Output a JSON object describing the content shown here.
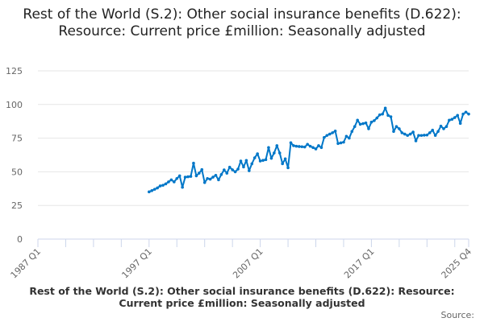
{
  "chart_data": {
    "type": "line",
    "title": "Rest of the World (S.2): Other social insurance benefits (D.622): Resource: Current price £million: Seasonally adjusted",
    "xlabel": "",
    "ylabel": "",
    "ylim": [
      0,
      125
    ],
    "yticks": [
      "0",
      "25",
      "50",
      "75",
      "100",
      "125"
    ],
    "xticks": [
      "1987 Q1",
      "1997 Q1",
      "2007 Q1",
      "2017 Q1",
      "2025 Q4"
    ],
    "x_range": [
      "1987 Q1",
      "2025 Q4"
    ],
    "x_start": "1997 Q1",
    "x_frequency": "quarterly",
    "grid": true,
    "legend": "none",
    "line_color": "#0077c8",
    "values": [
      35.1,
      36,
      37,
      38,
      39.5,
      40,
      41,
      42.5,
      44,
      42.5,
      45,
      47,
      38.5,
      46,
      46.3,
      46.6,
      56.4,
      47,
      49,
      51.6,
      42,
      45,
      44.5,
      46,
      47.4,
      44,
      48,
      51.4,
      49,
      53.4,
      51.5,
      50,
      52,
      58,
      53.6,
      58.4,
      50.8,
      56,
      60.4,
      63.4,
      58,
      58.5,
      59,
      68,
      60,
      64,
      69.4,
      64,
      56,
      59.6,
      53,
      71.6,
      69.4,
      69,
      68.8,
      68.6,
      68.4,
      70.4,
      69,
      68,
      67,
      69.4,
      68,
      75.5,
      77,
      78,
      79,
      80.3,
      71,
      71.5,
      72,
      76.4,
      75,
      80,
      83.6,
      88.3,
      85.3,
      85.8,
      86.3,
      82,
      86.9,
      88,
      90,
      92.3,
      92.9,
      97.3,
      91.9,
      90.9,
      80,
      83.6,
      82,
      79,
      78,
      77,
      78,
      79.5,
      73,
      77,
      77,
      77.2,
      77.3,
      79,
      80.9,
      77,
      80,
      83.9,
      82,
      83.6,
      88.3,
      89,
      90.3,
      91.9,
      86,
      92.9,
      94.3,
      92.9
    ]
  },
  "footer": {
    "series_title": "Rest of the World (S.2): Other social insurance benefits (D.622): Resource: Current price £million: Seasonally adjusted",
    "source_label": "Source:"
  }
}
